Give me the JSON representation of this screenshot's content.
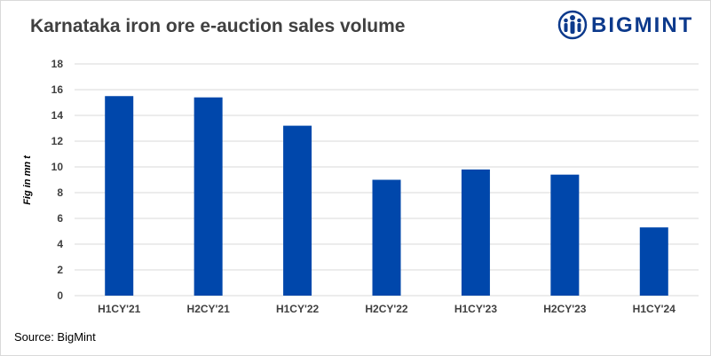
{
  "title": "Karnataka iron ore e-auction sales volume",
  "logo": {
    "text": "BIGMINT",
    "icon": "people-circle-icon",
    "color": "#0d3a8c"
  },
  "source": "Source: BigMint",
  "chart_data": {
    "type": "bar",
    "categories": [
      "H1CY'21",
      "H2CY'21",
      "H1CY'22",
      "H2CY'22",
      "H1CY'23",
      "H2CY'23",
      "H1CY'24"
    ],
    "values": [
      15.5,
      15.4,
      13.2,
      9.0,
      9.8,
      9.4,
      5.3
    ],
    "title": "Karnataka iron ore e-auction sales volume",
    "xlabel": "",
    "ylabel": "Fig in mn t",
    "ylim": [
      0,
      18
    ],
    "yticks": [
      0,
      2,
      4,
      6,
      8,
      10,
      12,
      14,
      16,
      18
    ],
    "grid": true,
    "bar_color": "#0047AB"
  }
}
